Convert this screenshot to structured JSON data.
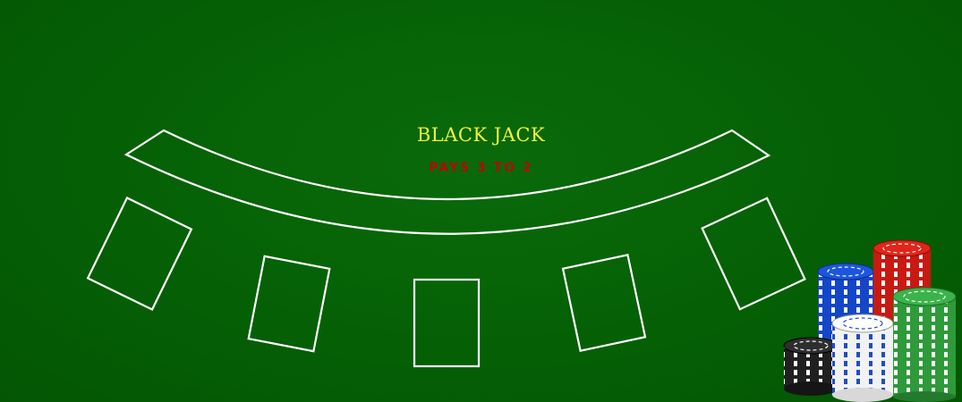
{
  "table": {
    "title": "BLACK JACK",
    "subtitle": "PAYS 3 TO 2",
    "colors": {
      "felt": "#066306",
      "title": "#f2f23c",
      "subtitle": "#b30a0a",
      "lines": "#ffffff"
    },
    "player_spots": 5
  },
  "chip_stacks": [
    {
      "name": "blue",
      "color": "#1446c8"
    },
    {
      "name": "red",
      "color": "#c81a12"
    },
    {
      "name": "black",
      "color": "#202020"
    },
    {
      "name": "white",
      "color": "#f2f2f2",
      "stripe": "#1f4fbf"
    },
    {
      "name": "green",
      "color": "#2e9a3a"
    }
  ]
}
